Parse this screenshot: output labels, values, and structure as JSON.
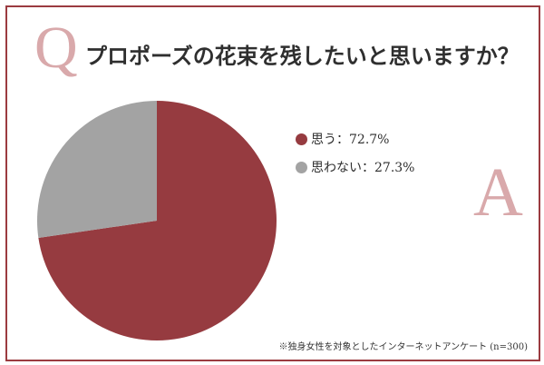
{
  "header": {
    "q_letter": "Q",
    "question": "プロポーズの花束を残したいと思いますか？"
  },
  "answer": {
    "a_letter": "A"
  },
  "colors": {
    "frame": "#9b3b40",
    "accent_letters": "#d9a9ab",
    "yes": "#963b40",
    "no": "#a3a3a3"
  },
  "legend": [
    {
      "label": "思う：72.7%",
      "color": "#963b40"
    },
    {
      "label": "思わない：27.3%",
      "color": "#a3a3a3"
    }
  ],
  "footnote": "※独身女性を対象としたインターネットアンケート (n=300)",
  "chart_data": {
    "type": "pie",
    "title": "プロポーズの花束を残したいと思いますか？",
    "series": [
      {
        "name": "思う",
        "value": 72.7,
        "color": "#963b40"
      },
      {
        "name": "思わない",
        "value": 27.3,
        "color": "#a3a3a3"
      }
    ],
    "start": "12 o'clock, clockwise",
    "legend_position": "right",
    "sample_size_note": "n=300"
  }
}
